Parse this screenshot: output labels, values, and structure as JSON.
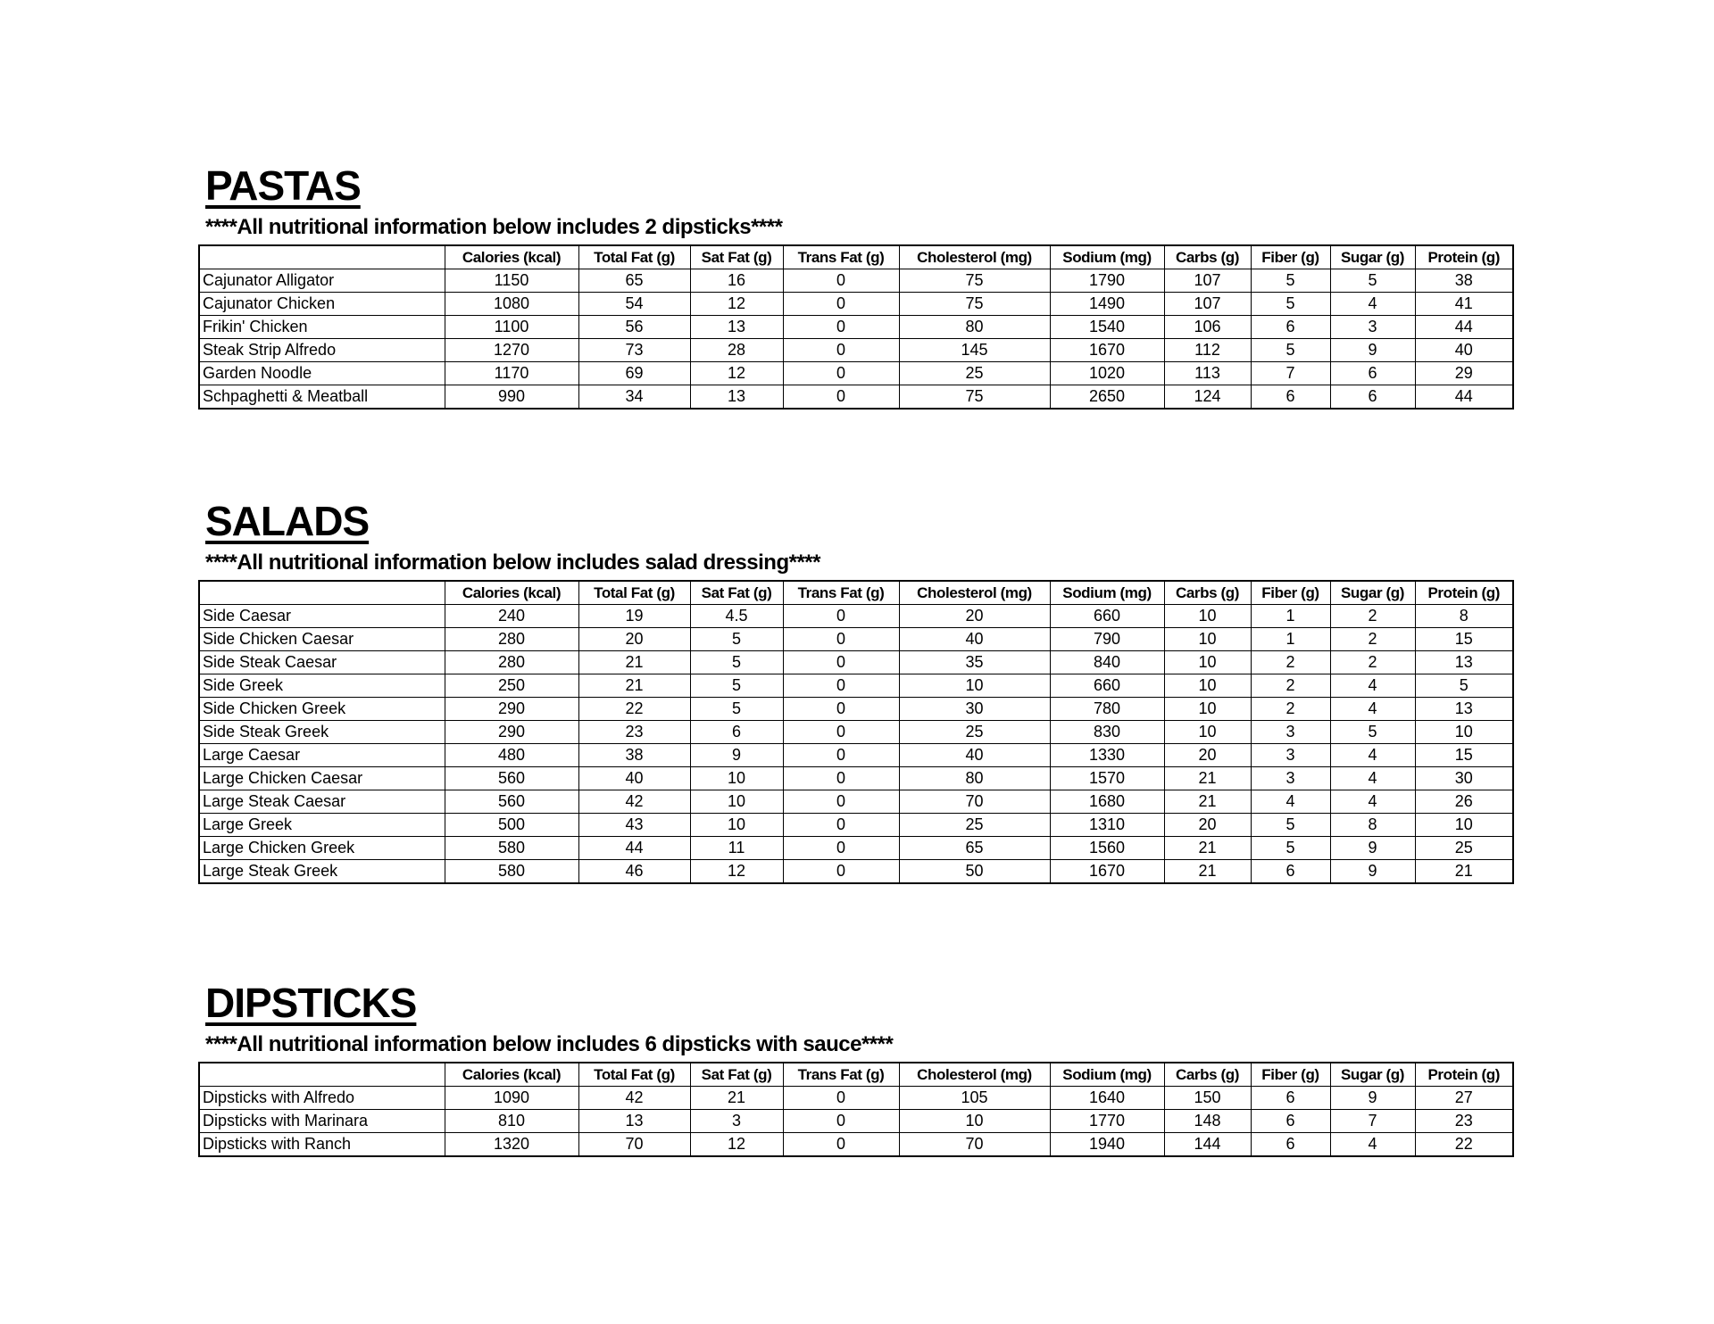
{
  "columns": [
    "Calories (kcal)",
    "Total Fat (g)",
    "Sat Fat (g)",
    "Trans Fat (g)",
    "Cholesterol (mg)",
    "Sodium (mg)",
    "Carbs (g)",
    "Fiber (g)",
    "Sugar (g)",
    "Protein (g)"
  ],
  "sections": [
    {
      "title": "PASTAS",
      "note": "****All nutritional information below includes 2 dipsticks****",
      "rows": [
        [
          "Cajunator Alligator",
          "1150",
          "65",
          "16",
          "0",
          "75",
          "1790",
          "107",
          "5",
          "5",
          "38"
        ],
        [
          "Cajunator Chicken",
          "1080",
          "54",
          "12",
          "0",
          "75",
          "1490",
          "107",
          "5",
          "4",
          "41"
        ],
        [
          "Frikin' Chicken",
          "1100",
          "56",
          "13",
          "0",
          "80",
          "1540",
          "106",
          "6",
          "3",
          "44"
        ],
        [
          "Steak Strip Alfredo",
          "1270",
          "73",
          "28",
          "0",
          "145",
          "1670",
          "112",
          "5",
          "9",
          "40"
        ],
        [
          "Garden Noodle",
          "1170",
          "69",
          "12",
          "0",
          "25",
          "1020",
          "113",
          "7",
          "6",
          "29"
        ],
        [
          "Schpaghetti & Meatball",
          "990",
          "34",
          "13",
          "0",
          "75",
          "2650",
          "124",
          "6",
          "6",
          "44"
        ]
      ]
    },
    {
      "title": "SALADS",
      "note": "****All nutritional information below includes salad dressing****",
      "rows": [
        [
          "Side Caesar",
          "240",
          "19",
          "4.5",
          "0",
          "20",
          "660",
          "10",
          "1",
          "2",
          "8"
        ],
        [
          "Side Chicken Caesar",
          "280",
          "20",
          "5",
          "0",
          "40",
          "790",
          "10",
          "1",
          "2",
          "15"
        ],
        [
          "Side Steak Caesar",
          "280",
          "21",
          "5",
          "0",
          "35",
          "840",
          "10",
          "2",
          "2",
          "13"
        ],
        [
          "Side Greek",
          "250",
          "21",
          "5",
          "0",
          "10",
          "660",
          "10",
          "2",
          "4",
          "5"
        ],
        [
          "Side Chicken Greek",
          "290",
          "22",
          "5",
          "0",
          "30",
          "780",
          "10",
          "2",
          "4",
          "13"
        ],
        [
          "Side Steak Greek",
          "290",
          "23",
          "6",
          "0",
          "25",
          "830",
          "10",
          "3",
          "5",
          "10"
        ],
        [
          "Large Caesar",
          "480",
          "38",
          "9",
          "0",
          "40",
          "1330",
          "20",
          "3",
          "4",
          "15"
        ],
        [
          "Large Chicken Caesar",
          "560",
          "40",
          "10",
          "0",
          "80",
          "1570",
          "21",
          "3",
          "4",
          "30"
        ],
        [
          "Large Steak Caesar",
          "560",
          "42",
          "10",
          "0",
          "70",
          "1680",
          "21",
          "4",
          "4",
          "26"
        ],
        [
          "Large Greek",
          "500",
          "43",
          "10",
          "0",
          "25",
          "1310",
          "20",
          "5",
          "8",
          "10"
        ],
        [
          "Large Chicken Greek",
          "580",
          "44",
          "11",
          "0",
          "65",
          "1560",
          "21",
          "5",
          "9",
          "25"
        ],
        [
          "Large Steak Greek",
          "580",
          "46",
          "12",
          "0",
          "50",
          "1670",
          "21",
          "6",
          "9",
          "21"
        ]
      ]
    },
    {
      "title": "DIPSTICKS",
      "note": "****All nutritional information below includes 6 dipsticks with sauce****",
      "rows": [
        [
          "Dipsticks with Alfredo",
          "1090",
          "42",
          "21",
          "0",
          "105",
          "1640",
          "150",
          "6",
          "9",
          "27"
        ],
        [
          "Dipsticks with Marinara",
          "810",
          "13",
          "3",
          "0",
          "10",
          "1770",
          "148",
          "6",
          "7",
          "23"
        ],
        [
          "Dipsticks with Ranch",
          "1320",
          "70",
          "12",
          "0",
          "70",
          "1940",
          "144",
          "6",
          "4",
          "22"
        ]
      ]
    }
  ]
}
